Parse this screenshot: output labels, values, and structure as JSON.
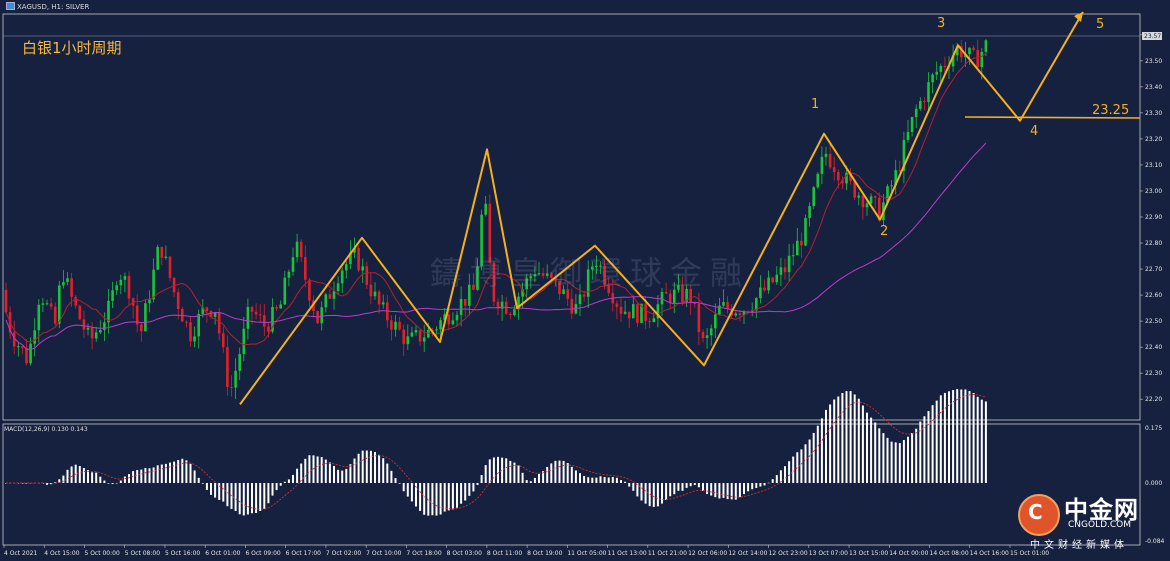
{
  "window": {
    "symbol_label": "XAGUSD, H1: SILVER"
  },
  "overlay_title": "白银1小时周期",
  "watermark": "鑄博皇御環球金融",
  "macd_label": "MACD(12,26,9) 0.130 0.143",
  "logo": {
    "name": "中金网",
    "url": "CNGOLD.COM",
    "tagline": "中文财经新媒体",
    "mark": "C"
  },
  "colors": {
    "background": "#16213f",
    "bull": "#19c43a",
    "bear": "#e0202a",
    "ma_fast": "#b5202e",
    "ma_slow": "#c03ac8",
    "wave": "#f5b020",
    "macd_hist": "#ffffff",
    "macd_signal": "#d03030"
  },
  "chart_data": {
    "type": "candlestick",
    "y_ticks": [
      "23.60",
      "23.50",
      "23.40",
      "23.30",
      "23.20",
      "23.10",
      "23.00",
      "22.90",
      "22.80",
      "22.70",
      "22.60",
      "22.50",
      "22.40",
      "22.30",
      "22.20"
    ],
    "ylim": [
      22.12,
      23.68
    ],
    "current_price_label": "23.57",
    "x_ticks": [
      "4 Oct 2021",
      "4 Oct 15:00",
      "5 Oct 00:00",
      "5 Oct 08:00",
      "5 Oct 16:00",
      "6 Oct 01:00",
      "6 Oct 09:00",
      "6 Oct 17:00",
      "7 Oct 02:00",
      "7 Oct 10:00",
      "7 Oct 18:00",
      "8 Oct 03:00",
      "8 Oct 11:00",
      "8 Oct 19:00",
      "11 Oct 05:00",
      "11 Oct 13:00",
      "11 Oct 21:00",
      "12 Oct 06:00",
      "12 Oct 14:00",
      "12 Oct 23:00",
      "13 Oct 07:00",
      "13 Oct 15:00",
      "14 Oct 00:00",
      "14 Oct 08:00",
      "14 Oct 16:00",
      "15 Oct 01:00"
    ],
    "wave_path": [
      {
        "bar": 0,
        "price": 22.18
      },
      {
        "bar": 0,
        "price": 22.82
      },
      {
        "bar": 0,
        "price": 22.42
      },
      {
        "bar": 0,
        "price": 23.16
      },
      {
        "bar": 0,
        "price": 22.55
      },
      {
        "bar": 0,
        "price": 22.79
      },
      {
        "bar": 0,
        "price": 22.33
      },
      {
        "bar": 0,
        "price": 23.22
      },
      {
        "bar": 0,
        "price": 22.89
      },
      {
        "bar": 0,
        "price": 23.56
      },
      {
        "bar": 0,
        "price": 23.27
      },
      {
        "bar": 0,
        "price": 23.78
      }
    ],
    "wave_labels": [
      "1",
      "2",
      "3",
      "4",
      "5"
    ],
    "support_level": "23.25",
    "macd_ticks": [
      "0.175",
      "0.000",
      "-0.084"
    ]
  }
}
